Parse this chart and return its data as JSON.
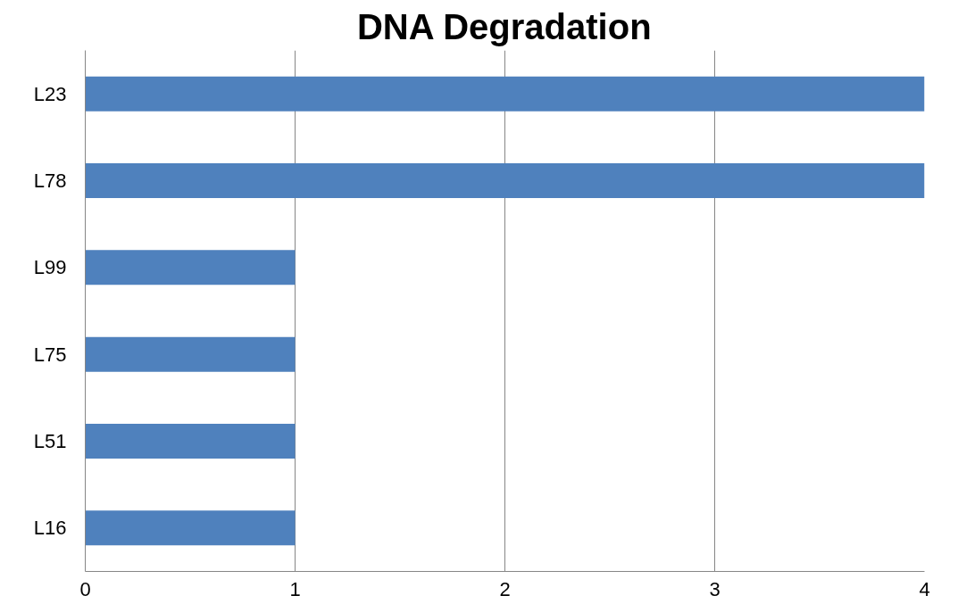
{
  "chart_data": {
    "type": "bar",
    "orientation": "horizontal",
    "title": "DNA Degradation",
    "categories": [
      "L23",
      "L78",
      "L99",
      "L75",
      "L51",
      "L16"
    ],
    "values": [
      4,
      4,
      1,
      1,
      1,
      1
    ],
    "color": "#4f81bd",
    "xlim": [
      0,
      4
    ],
    "xticks": [
      0,
      1,
      2,
      3,
      4
    ],
    "grid": "x"
  }
}
